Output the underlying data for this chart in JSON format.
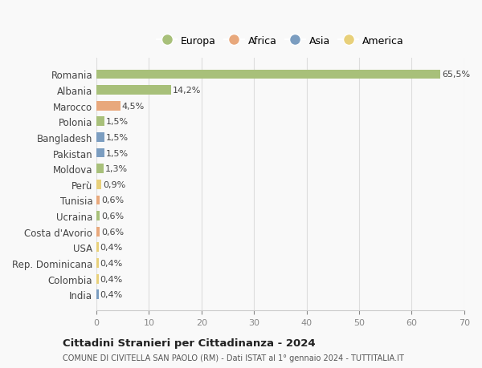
{
  "countries": [
    "Romania",
    "Albania",
    "Marocco",
    "Polonia",
    "Bangladesh",
    "Pakistan",
    "Moldova",
    "Perù",
    "Tunisia",
    "Ucraina",
    "Costa d'Avorio",
    "USA",
    "Rep. Dominicana",
    "Colombia",
    "India"
  ],
  "values": [
    65.5,
    14.2,
    4.5,
    1.5,
    1.5,
    1.5,
    1.3,
    0.9,
    0.6,
    0.6,
    0.6,
    0.4,
    0.4,
    0.4,
    0.4
  ],
  "labels": [
    "65,5%",
    "14,2%",
    "4,5%",
    "1,5%",
    "1,5%",
    "1,5%",
    "1,3%",
    "0,9%",
    "0,6%",
    "0,6%",
    "0,6%",
    "0,4%",
    "0,4%",
    "0,4%",
    "0,4%"
  ],
  "continents": [
    "Europa",
    "Europa",
    "Africa",
    "Europa",
    "Asia",
    "Asia",
    "Europa",
    "America",
    "Africa",
    "Europa",
    "Africa",
    "America",
    "America",
    "America",
    "Asia"
  ],
  "continent_colors": {
    "Europa": "#a8c07a",
    "Africa": "#e8a87c",
    "Asia": "#7b9dc0",
    "America": "#e8d07a"
  },
  "legend_items": [
    "Europa",
    "Africa",
    "Asia",
    "America"
  ],
  "legend_colors": [
    "#a8c07a",
    "#e8a87c",
    "#7b9dc0",
    "#e8d07a"
  ],
  "title": "Cittadini Stranieri per Cittadinanza - 2024",
  "subtitle": "COMUNE DI CIVITELLA SAN PAOLO (RM) - Dati ISTAT al 1° gennaio 2024 - TUTTITALIA.IT",
  "xlim": [
    0,
    70
  ],
  "xticks": [
    0,
    10,
    20,
    30,
    40,
    50,
    60,
    70
  ],
  "background_color": "#f9f9f9",
  "grid_color": "#dddddd",
  "bar_height": 0.6
}
